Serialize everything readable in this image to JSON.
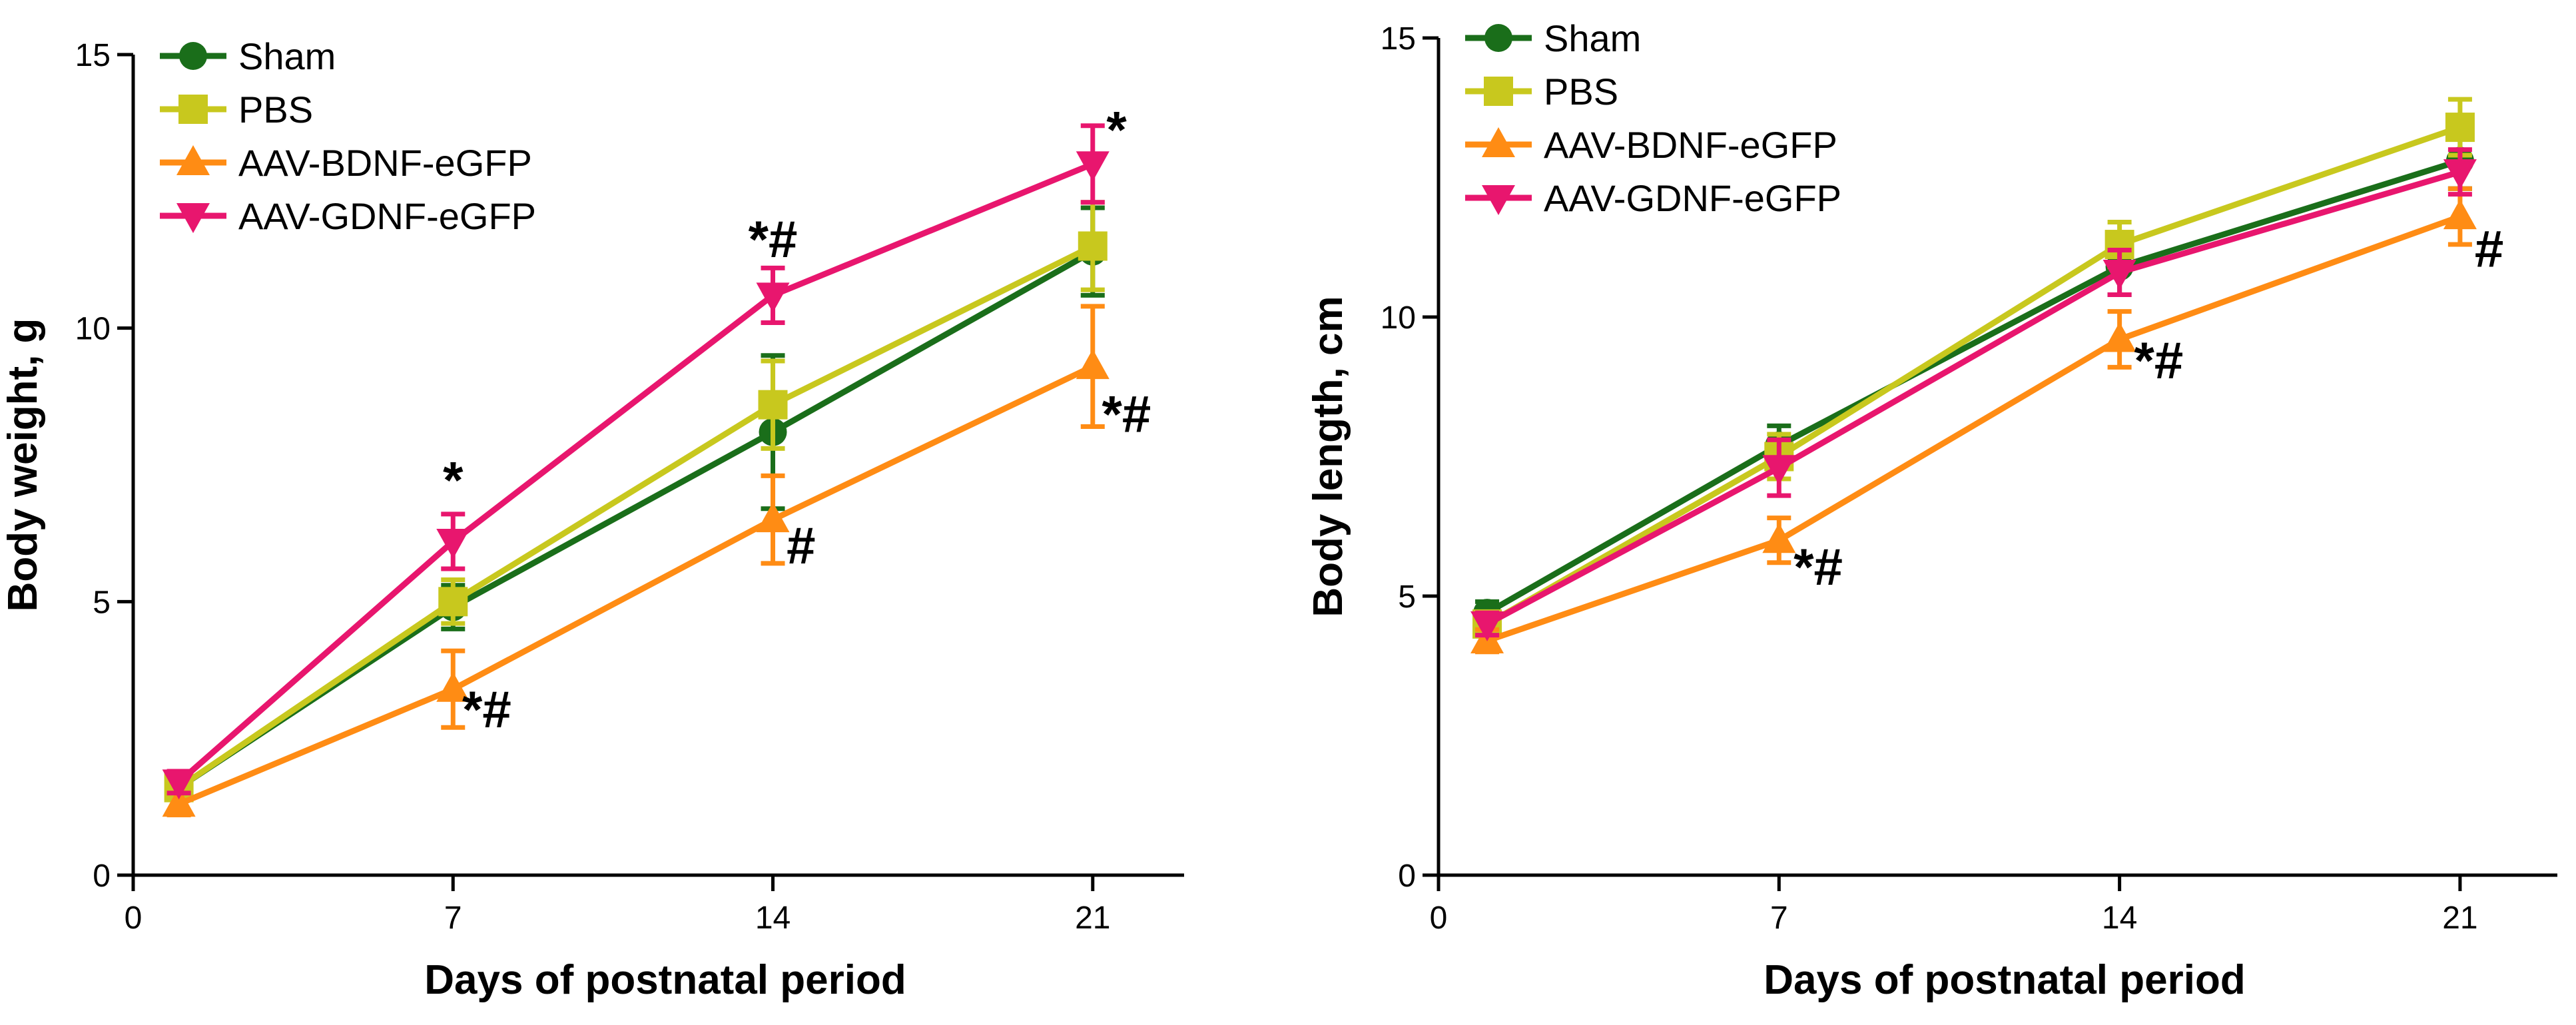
{
  "colors": {
    "Sham": "#1a6e1a",
    "PBS": "#c8c81e",
    "AAV-BDNF-eGFP": "#ff8c14",
    "AAV-GDNF-eGFP": "#e8166e"
  },
  "chart_data": [
    {
      "type": "line",
      "title": "",
      "xlabel": "Days of postnatal period",
      "ylabel": "Body weight, g",
      "xlim": [
        0,
        23
      ],
      "ylim": [
        0,
        15
      ],
      "xticks": [
        0,
        7,
        14,
        21
      ],
      "xtick_labels": [
        "0",
        "7",
        "14",
        "21"
      ],
      "yticks": [
        0,
        5,
        10,
        15
      ],
      "ytick_labels": [
        "0",
        "5",
        "10",
        "15"
      ],
      "x": [
        1,
        7,
        14,
        21
      ],
      "legend_position": "top-left",
      "series": [
        {
          "name": "Sham",
          "marker": "circle",
          "values": [
            1.6,
            4.9,
            8.1,
            11.4
          ],
          "errors": [
            0.2,
            0.4,
            1.4,
            0.8
          ]
        },
        {
          "name": "PBS",
          "marker": "square",
          "values": [
            1.6,
            5.0,
            8.6,
            11.5
          ],
          "errors": [
            0.2,
            0.4,
            0.8,
            0.8
          ]
        },
        {
          "name": "AAV-BDNF-eGFP",
          "marker": "triangle-up",
          "values": [
            1.3,
            3.4,
            6.5,
            9.3
          ],
          "errors": [
            0.2,
            0.7,
            0.8,
            1.1
          ]
        },
        {
          "name": "AAV-GDNF-eGFP",
          "marker": "triangle-down",
          "values": [
            1.7,
            6.1,
            10.6,
            13.0
          ],
          "errors": [
            0.2,
            0.5,
            0.5,
            0.7
          ]
        }
      ],
      "annotations": [
        {
          "text": "*",
          "x": 7,
          "y": 6.9,
          "anchor": "middle"
        },
        {
          "text": "*#",
          "x": 7.2,
          "y": 2.7,
          "anchor": "start"
        },
        {
          "text": "*#",
          "x": 14,
          "y": 11.3,
          "anchor": "middle"
        },
        {
          "text": "#",
          "x": 14.3,
          "y": 5.7,
          "anchor": "start"
        },
        {
          "text": "*",
          "x": 21.3,
          "y": 13.3,
          "anchor": "start"
        },
        {
          "text": "*#",
          "x": 21.2,
          "y": 8.1,
          "anchor": "start"
        }
      ]
    },
    {
      "type": "line",
      "title": "",
      "xlabel": "Days of postnatal period",
      "ylabel": "Body length, cm",
      "xlim": [
        0,
        23
      ],
      "ylim": [
        0,
        15
      ],
      "xticks": [
        0,
        7,
        14,
        21
      ],
      "xtick_labels": [
        "0",
        "7",
        "14",
        "21"
      ],
      "yticks": [
        0,
        5,
        10,
        15
      ],
      "ytick_labels": [
        "0",
        "5",
        "10",
        "15"
      ],
      "x": [
        1,
        7,
        14,
        21
      ],
      "legend_position": "top-left",
      "series": [
        {
          "name": "Sham",
          "marker": "circle",
          "values": [
            4.7,
            7.7,
            10.9,
            12.8
          ],
          "errors": [
            0.2,
            0.35,
            0.5,
            0.5
          ]
        },
        {
          "name": "PBS",
          "marker": "square",
          "values": [
            4.5,
            7.5,
            11.3,
            13.4
          ],
          "errors": [
            0.2,
            0.4,
            0.4,
            0.5
          ]
        },
        {
          "name": "AAV-BDNF-eGFP",
          "marker": "triangle-up",
          "values": [
            4.2,
            6.0,
            9.6,
            11.8
          ],
          "errors": [
            0.2,
            0.4,
            0.5,
            0.5
          ]
        },
        {
          "name": "AAV-GDNF-eGFP",
          "marker": "triangle-down",
          "values": [
            4.5,
            7.3,
            10.8,
            12.6
          ],
          "errors": [
            0.2,
            0.5,
            0.4,
            0.4
          ]
        }
      ],
      "annotations": [
        {
          "text": "*#",
          "x": 7.3,
          "y": 5.2,
          "anchor": "start"
        },
        {
          "text": "*#",
          "x": 14.3,
          "y": 8.9,
          "anchor": "start"
        },
        {
          "text": "#",
          "x": 21.3,
          "y": 10.9,
          "anchor": "start"
        }
      ]
    }
  ]
}
